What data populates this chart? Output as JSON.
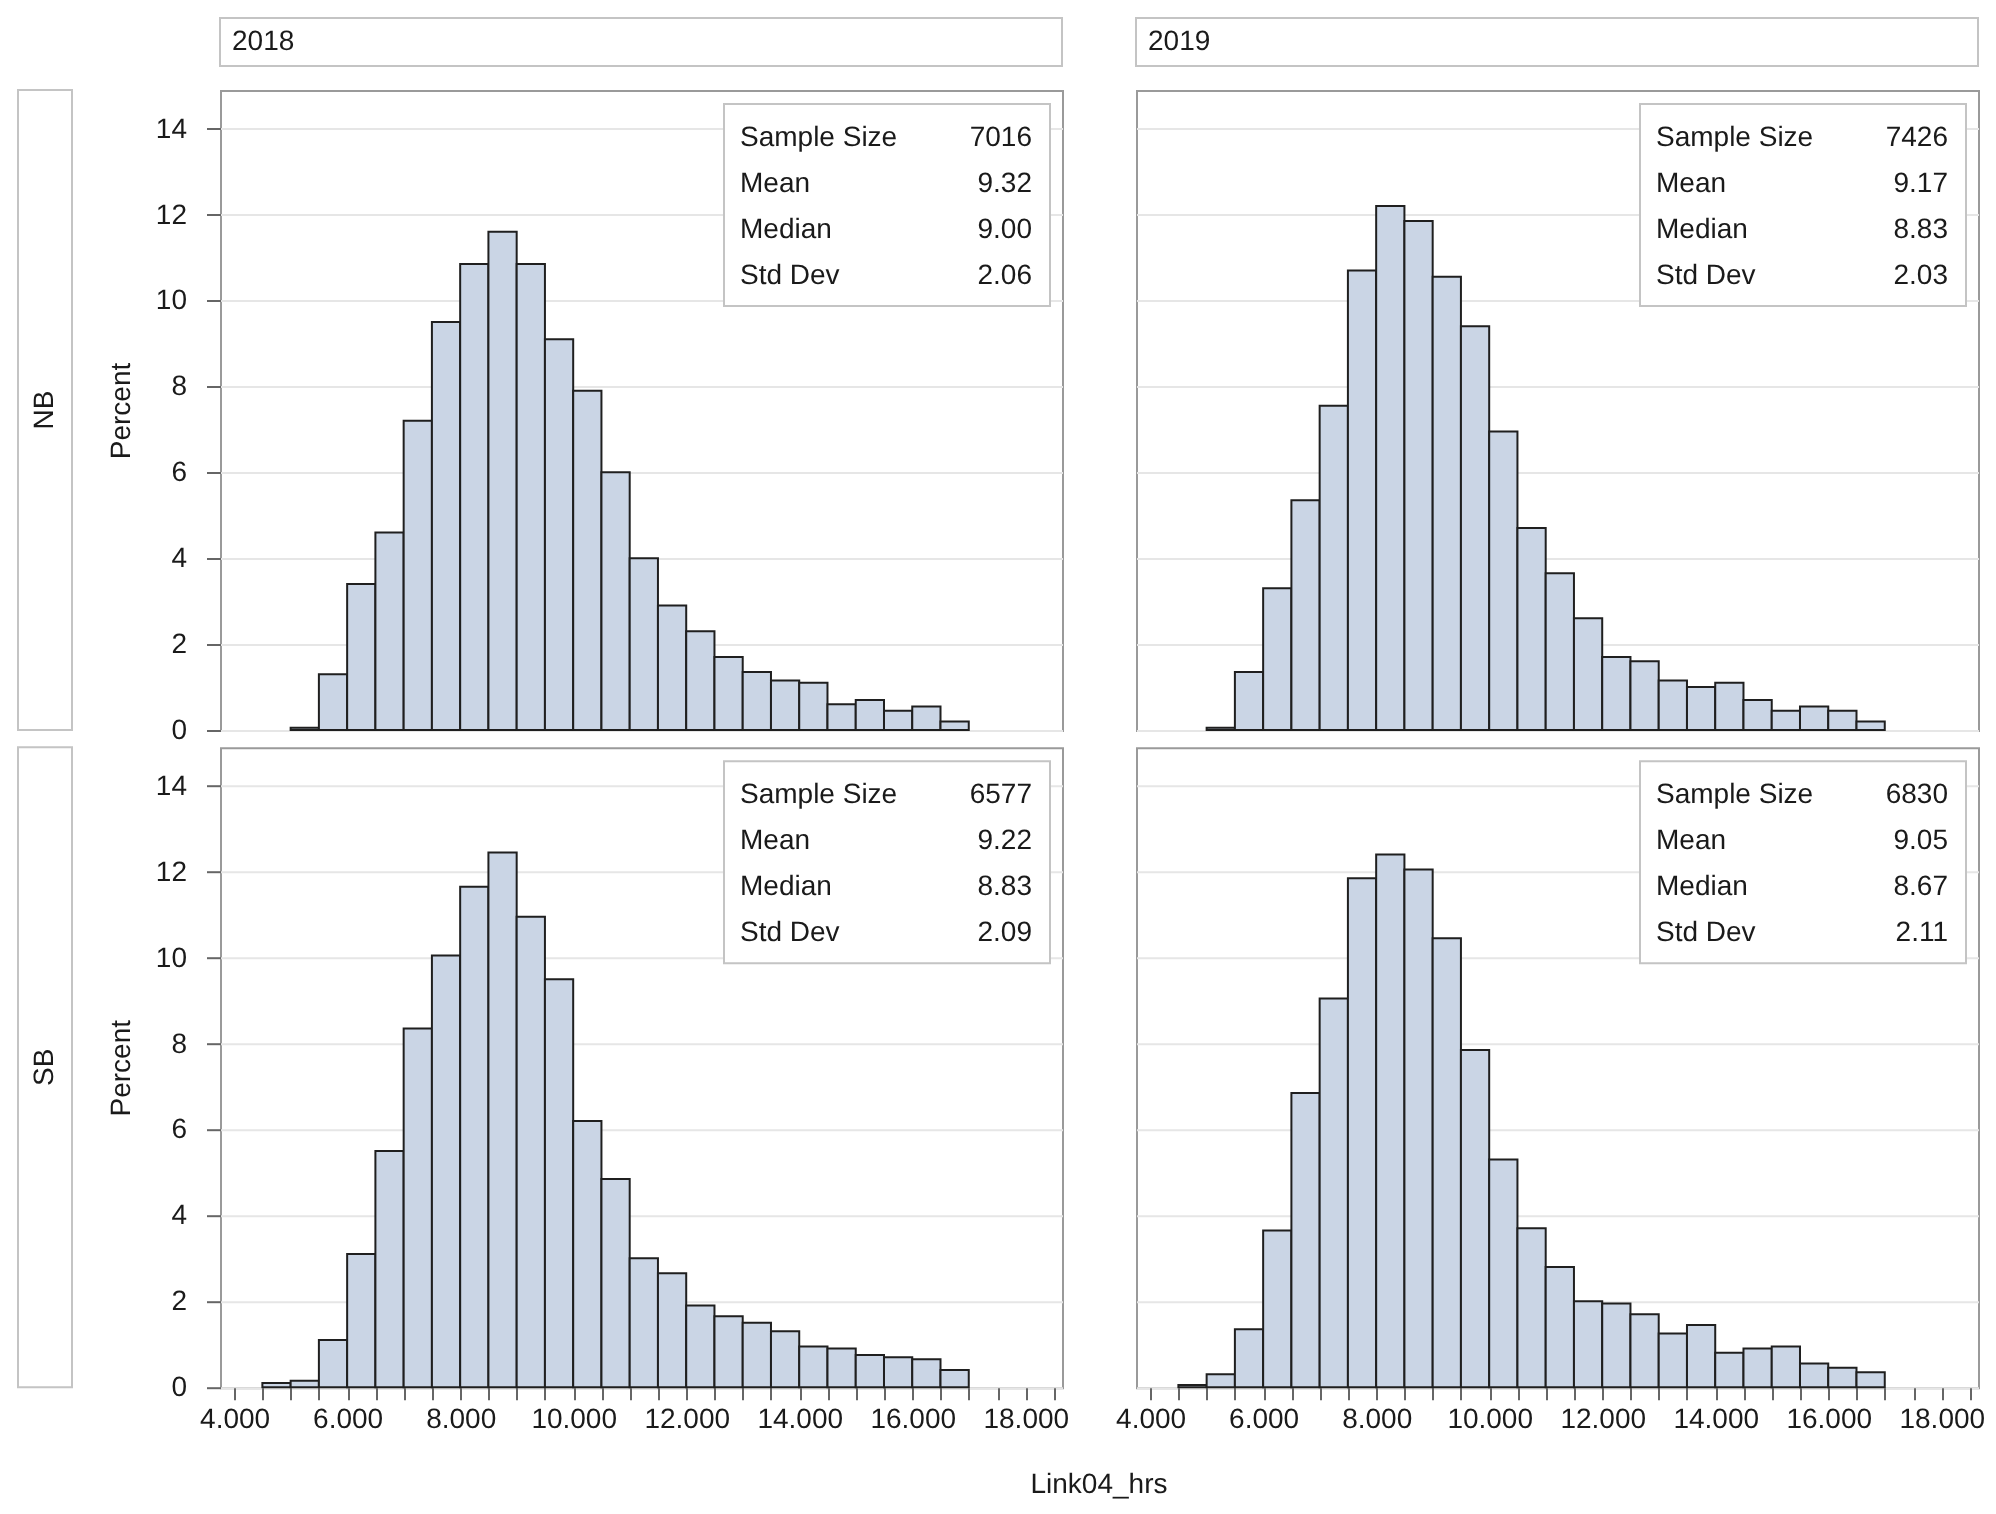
{
  "chart_data": [
    {
      "type": "histogram",
      "title": "2018",
      "subtitle": "NB",
      "ylabel": "Percent",
      "annotations": [
        "Sample Size",
        "7016",
        "Mean",
        "9.32",
        "Median",
        "9.00",
        "Std Dev",
        "2.06"
      ],
      "bins": [
        5,
        5.5,
        6,
        6.5,
        7,
        7.5,
        8,
        8.5,
        9,
        9.5,
        10,
        10.5,
        11,
        11.5,
        12,
        12.5,
        13,
        13.5,
        14,
        14.5,
        15,
        15.5,
        16,
        16.5,
        17
      ],
      "values": [
        0.05,
        1.3,
        3.4,
        4.6,
        7.2,
        9.5,
        10.85,
        11.6,
        10.85,
        9.1,
        7.9,
        6.0,
        4.0,
        2.9,
        2.3,
        1.7,
        1.35,
        1.15,
        1.1,
        0.6,
        0.7,
        0.45,
        0.55,
        0.2
      ],
      "color": "#cad5e5",
      "xlim": [
        3.75,
        18.65
      ],
      "ylim": [
        0,
        14.9
      ],
      "yticks": [
        0,
        2,
        4,
        6,
        8,
        10,
        12,
        14
      ],
      "grid": "y",
      "tick_labels": "y"
    },
    {
      "type": "histogram",
      "title": "2019",
      "annotations": [
        "Sample Size",
        "7426",
        "Mean",
        "9.17",
        "Median",
        "8.83",
        "Std Dev",
        "2.03"
      ],
      "bins": [
        5,
        5.5,
        6,
        6.5,
        7,
        7.5,
        8,
        8.5,
        9,
        9.5,
        10,
        10.5,
        11,
        11.5,
        12,
        12.5,
        13,
        13.5,
        14,
        14.5,
        15,
        15.5,
        16,
        16.5,
        17
      ],
      "values": [
        0.05,
        1.35,
        3.3,
        5.35,
        7.55,
        10.7,
        12.2,
        11.85,
        10.55,
        9.4,
        6.95,
        4.7,
        3.65,
        2.6,
        1.7,
        1.6,
        1.15,
        1.0,
        1.1,
        0.7,
        0.45,
        0.55,
        0.45,
        0.2
      ],
      "color": "#cad5e5",
      "xlim": [
        3.75,
        18.65
      ],
      "ylim": [
        0,
        14.9
      ],
      "yticks": [
        0,
        2,
        4,
        6,
        8,
        10,
        12,
        14
      ],
      "grid": "y",
      "tick_labels": false
    },
    {
      "type": "histogram",
      "subtitle": "SB",
      "ylabel": "Percent",
      "xlabel": "Link04_hrs",
      "annotations": [
        "Sample Size",
        "6577",
        "Mean",
        "9.22",
        "Median",
        "8.83",
        "Std Dev",
        "2.09"
      ],
      "bins": [
        4.5,
        5,
        5.5,
        6,
        6.5,
        7,
        7.5,
        8,
        8.5,
        9,
        9.5,
        10,
        10.5,
        11,
        11.5,
        12,
        12.5,
        13,
        13.5,
        14,
        14.5,
        15,
        15.5,
        16,
        16.5,
        17
      ],
      "values": [
        0.1,
        0.15,
        1.1,
        3.1,
        5.5,
        8.35,
        10.05,
        11.65,
        12.45,
        10.95,
        9.5,
        6.2,
        4.85,
        3.0,
        2.65,
        1.9,
        1.65,
        1.5,
        1.3,
        0.95,
        0.9,
        0.75,
        0.7,
        0.65,
        0.4
      ],
      "color": "#cad5e5",
      "xlim": [
        3.75,
        18.65
      ],
      "ylim": [
        0,
        14.9
      ],
      "xticks": [
        {
          "value": 4,
          "label": "4.000"
        },
        {
          "value": 4.5,
          "label": null
        },
        {
          "value": 5,
          "label": null
        },
        {
          "value": 5.5,
          "label": null
        },
        {
          "value": 6,
          "label": "6.000"
        },
        {
          "value": 6.5,
          "label": null
        },
        {
          "value": 7,
          "label": null
        },
        {
          "value": 7.5,
          "label": null
        },
        {
          "value": 8,
          "label": "8.000"
        },
        {
          "value": 8.5,
          "label": null
        },
        {
          "value": 9,
          "label": null
        },
        {
          "value": 9.5,
          "label": null
        },
        {
          "value": 10,
          "label": "10.000"
        },
        {
          "value": 10.5,
          "label": null
        },
        {
          "value": 11,
          "label": null
        },
        {
          "value": 11.5,
          "label": null
        },
        {
          "value": 12,
          "label": "12.000"
        },
        {
          "value": 12.5,
          "label": null
        },
        {
          "value": 13,
          "label": null
        },
        {
          "value": 13.5,
          "label": null
        },
        {
          "value": 14,
          "label": "14.000"
        },
        {
          "value": 14.5,
          "label": null
        },
        {
          "value": 15,
          "label": null
        },
        {
          "value": 15.5,
          "label": null
        },
        {
          "value": 16,
          "label": "16.000"
        },
        {
          "value": 16.5,
          "label": null
        },
        {
          "value": 17,
          "label": null
        },
        {
          "value": 17.5,
          "label": null
        },
        {
          "value": 18,
          "label": "18.000"
        },
        {
          "value": 18.5,
          "label": null
        }
      ],
      "yticks": [
        0,
        2,
        4,
        6,
        8,
        10,
        12,
        14
      ],
      "grid": "y"
    },
    {
      "type": "histogram",
      "annotations": [
        "Sample Size",
        "6830",
        "Mean",
        "9.05",
        "Median",
        "8.67",
        "Std Dev",
        "2.11"
      ],
      "bins": [
        4.5,
        5,
        5.5,
        6,
        6.5,
        7,
        7.5,
        8,
        8.5,
        9,
        9.5,
        10,
        10.5,
        11,
        11.5,
        12,
        12.5,
        13,
        13.5,
        14,
        14.5,
        15,
        15.5,
        16,
        16.5,
        17
      ],
      "values": [
        0.05,
        0.3,
        1.35,
        3.65,
        6.85,
        9.05,
        11.85,
        12.4,
        12.05,
        10.45,
        7.85,
        5.3,
        3.7,
        2.8,
        2.0,
        1.95,
        1.7,
        1.25,
        1.45,
        0.8,
        0.9,
        0.95,
        0.55,
        0.45,
        0.35
      ],
      "color": "#cad5e5",
      "xlim": [
        3.75,
        18.65
      ],
      "ylim": [
        0,
        14.9
      ],
      "xticks": [
        {
          "value": 4,
          "label": "4.000"
        },
        {
          "value": 4.5,
          "label": null
        },
        {
          "value": 5,
          "label": null
        },
        {
          "value": 5.5,
          "label": null
        },
        {
          "value": 6,
          "label": "6.000"
        },
        {
          "value": 6.5,
          "label": null
        },
        {
          "value": 7,
          "label": null
        },
        {
          "value": 7.5,
          "label": null
        },
        {
          "value": 8,
          "label": "8.000"
        },
        {
          "value": 8.5,
          "label": null
        },
        {
          "value": 9,
          "label": null
        },
        {
          "value": 9.5,
          "label": null
        },
        {
          "value": 10,
          "label": "10.000"
        },
        {
          "value": 10.5,
          "label": null
        },
        {
          "value": 11,
          "label": null
        },
        {
          "value": 11.5,
          "label": null
        },
        {
          "value": 12,
          "label": "12.000"
        },
        {
          "value": 12.5,
          "label": null
        },
        {
          "value": 13,
          "label": null
        },
        {
          "value": 13.5,
          "label": null
        },
        {
          "value": 14,
          "label": "14.000"
        },
        {
          "value": 14.5,
          "label": null
        },
        {
          "value": 15,
          "label": null
        },
        {
          "value": 15.5,
          "label": null
        },
        {
          "value": 16,
          "label": "16.000"
        },
        {
          "value": 16.5,
          "label": null
        },
        {
          "value": 17,
          "label": null
        },
        {
          "value": 17.5,
          "label": null
        },
        {
          "value": 18,
          "label": "18.000"
        },
        {
          "value": 18.5,
          "label": null
        }
      ],
      "yticks": [
        0,
        2,
        4,
        6,
        8,
        10,
        12,
        14
      ],
      "grid": "y",
      "tick_labels": "x"
    }
  ]
}
